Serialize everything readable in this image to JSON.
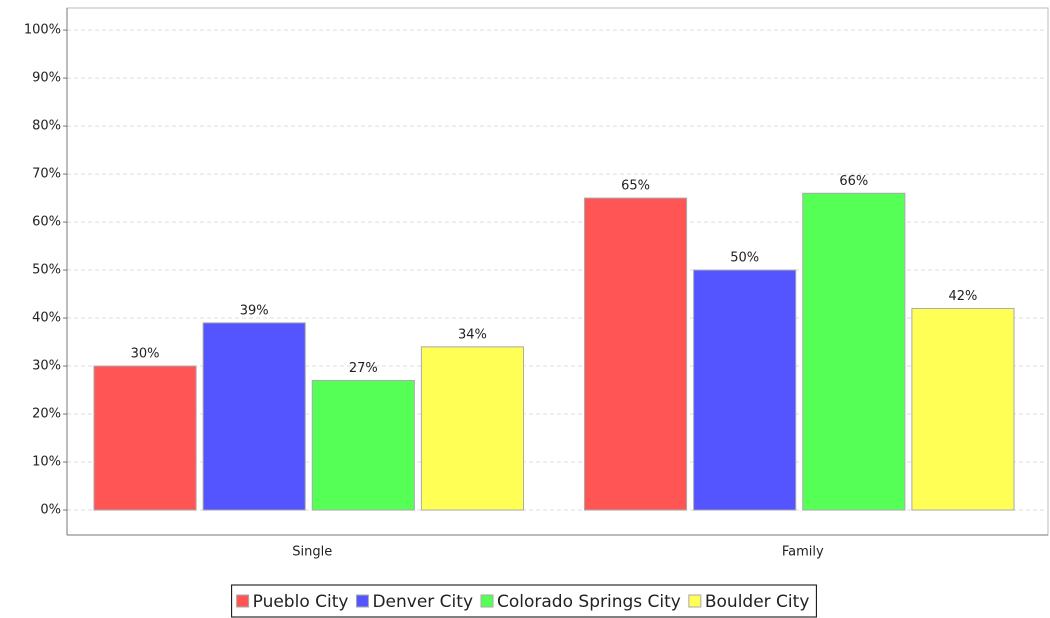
{
  "chart_data": {
    "type": "bar",
    "categories": [
      "Single",
      "Family"
    ],
    "series": [
      {
        "name": "Pueblo City",
        "color": "#ff5555",
        "values": [
          30,
          65
        ],
        "value_labels": [
          "30%",
          "65%"
        ]
      },
      {
        "name": "Denver City",
        "color": "#5555ff",
        "values": [
          39,
          50
        ],
        "value_labels": [
          "39%",
          "50%"
        ]
      },
      {
        "name": "Colorado Springs City",
        "color": "#55ff55",
        "values": [
          27,
          66
        ],
        "value_labels": [
          "27%",
          "66%"
        ]
      },
      {
        "name": "Boulder City",
        "color": "#ffff55",
        "values": [
          34,
          42
        ],
        "value_labels": [
          "34%",
          "42%"
        ]
      }
    ],
    "ylim": [
      -5.2,
      104.6
    ],
    "yticks": [
      {
        "value": 0,
        "label": "0%"
      },
      {
        "value": 10,
        "label": "10%"
      },
      {
        "value": 20,
        "label": "20%"
      },
      {
        "value": 30,
        "label": "30%"
      },
      {
        "value": 40,
        "label": "40%"
      },
      {
        "value": 50,
        "label": "50%"
      },
      {
        "value": 60,
        "label": "60%"
      },
      {
        "value": 70,
        "label": "70%"
      },
      {
        "value": 80,
        "label": "80%"
      },
      {
        "value": 90,
        "label": "90%"
      },
      {
        "value": 100,
        "label": "100%"
      }
    ],
    "grid": true,
    "legend": "bottom"
  }
}
